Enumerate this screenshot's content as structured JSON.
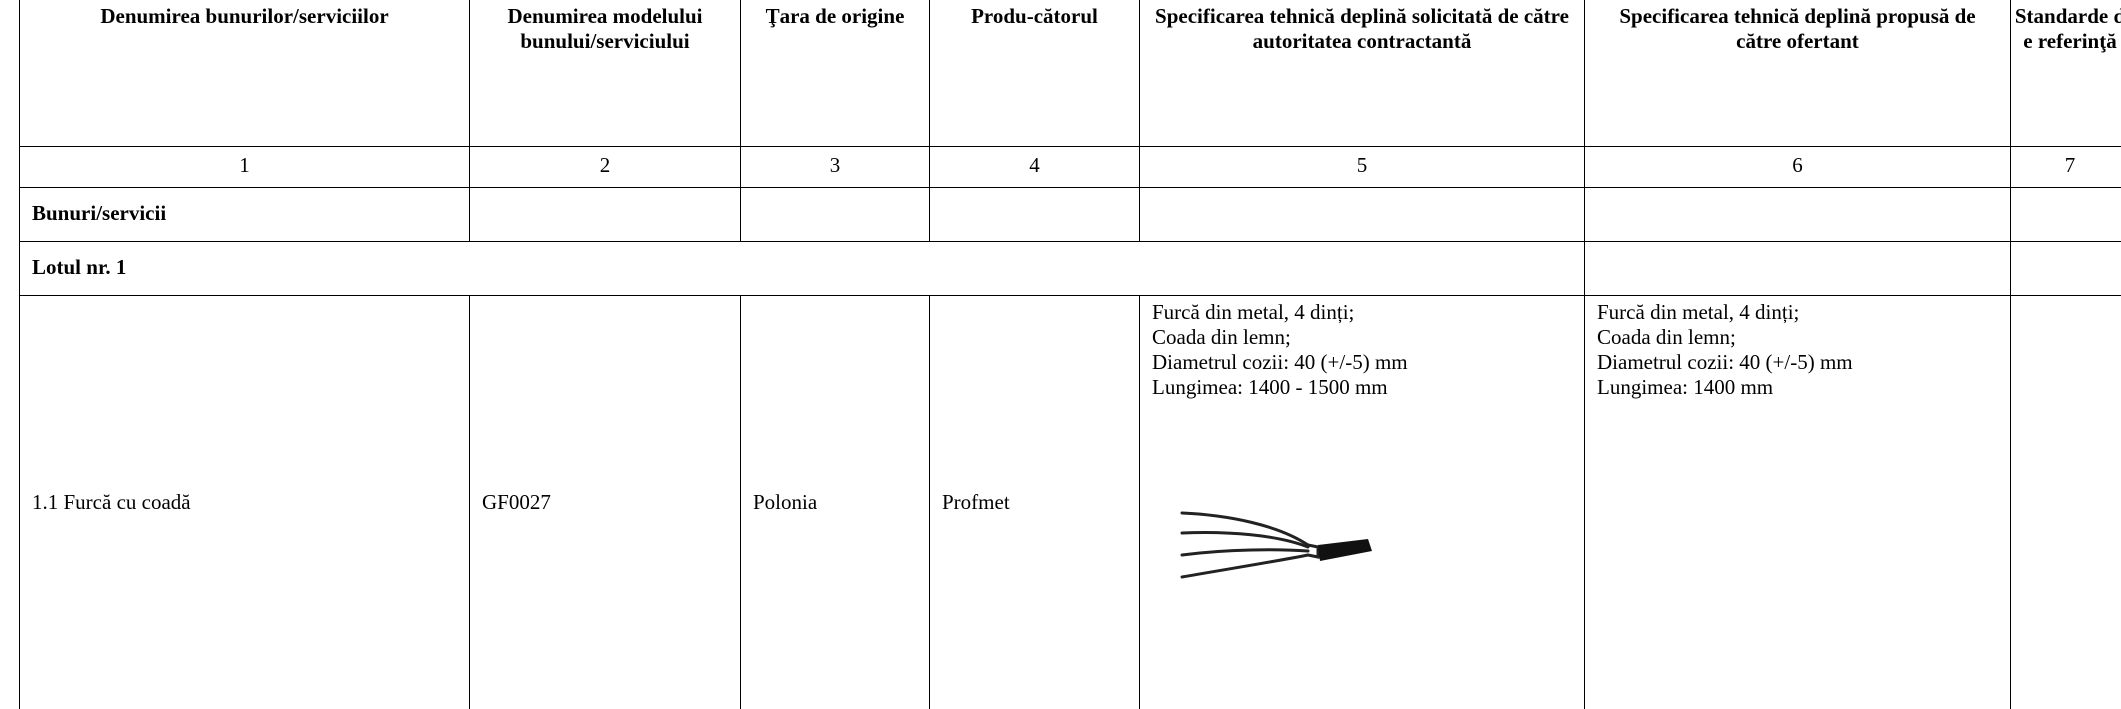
{
  "table": {
    "headers": [
      "Denumirea bunurilor/serviciilor",
      "Denumirea modelului bunului/serviciului",
      "Ţara de origine",
      "Produ-cătorul",
      "Specificarea tehnică deplină solicitată de către autoritatea contractantă",
      "Specificarea tehnică deplină propusă de către ofertant",
      "Standarde de referinţă"
    ],
    "numbers": [
      "1",
      "2",
      "3",
      "4",
      "5",
      "6",
      "7"
    ],
    "section": "Bunuri/servicii",
    "lot": "Lotul nr. 1",
    "item": {
      "name": "1.1 Furcă cu coadă",
      "model": "GF0027",
      "country": "Polonia",
      "producer": "Profmet",
      "required_spec": [
        "Furcă din metal, 4 dinți;",
        "Coada din lemn;",
        "Diametrul cozii: 40 (+/-5) mm",
        "Lungimea: 1400 - 1500 mm"
      ],
      "offered_spec": [
        "Furcă din metal, 4 dinți;",
        "Coada din lemn;",
        "Diametrul cozii: 40 (+/-5) mm",
        "Lungimea: 1400 mm"
      ]
    }
  }
}
